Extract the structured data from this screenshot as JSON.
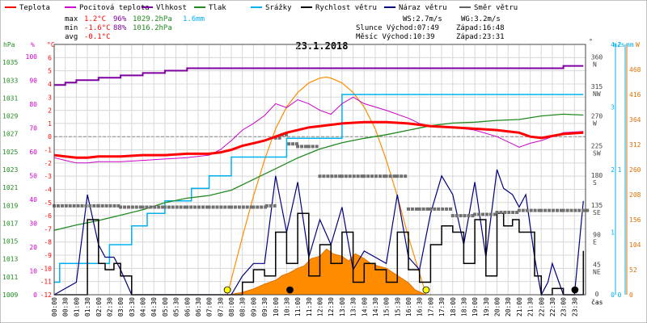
{
  "legend": {
    "items": [
      {
        "key": "teplota",
        "label": "Teplota",
        "color": "#ff0000"
      },
      {
        "key": "pocitova",
        "label": "Pocitová teplota",
        "color": "#cc00cc"
      },
      {
        "key": "vlhkost",
        "label": "Vlhkost",
        "color": "#7f00a0"
      },
      {
        "key": "tlak",
        "label": "Tlak",
        "color": "#208a20"
      },
      {
        "key": "srazky",
        "label": "Srážky",
        "color": "#00b0f0"
      },
      {
        "key": "rychlost",
        "label": "Rychlost větru",
        "color": "#000000"
      },
      {
        "key": "naraz",
        "label": "Náraz větru",
        "color": "#000080"
      },
      {
        "key": "smer",
        "label": "Směr větru",
        "color": "#606060"
      }
    ]
  },
  "stats": {
    "max_label": "max",
    "max_temp": "1.2°C",
    "max_hum": "96%",
    "max_press": "1029.2hPa",
    "sum_rain": "1.6mm",
    "min_label": "min",
    "min_temp": "-1.6°C",
    "min_hum": "88%",
    "min_press": "1016.2hPa",
    "avg_label": "avg",
    "avg_temp": "-0.1°C",
    "ws": "WS:2.7m/s",
    "wg": "WG:3.2m/s",
    "sun_rise": "Slunce Východ:07:49",
    "sun_set": "Západ:16:48",
    "moon_rise": "Měsíc  Východ:10:39",
    "moon_set": "Západ:23:31"
  },
  "chart_data": {
    "type": "line",
    "title": "23.1.2018",
    "xlabel": "čas",
    "x_ticks": [
      "00:00",
      "00:30",
      "01:00",
      "01:30",
      "02:00",
      "02:30",
      "03:00",
      "03:30",
      "04:00",
      "04:30",
      "05:00",
      "05:30",
      "06:00",
      "06:30",
      "07:00",
      "07:30",
      "08:00",
      "08:30",
      "09:00",
      "09:30",
      "10:00",
      "10:30",
      "11:00",
      "11:30",
      "12:00",
      "12:30",
      "13:00",
      "13:30",
      "14:00",
      "14:30",
      "15:00",
      "15:30",
      "16:00",
      "16:30",
      "17:00",
      "17:30",
      "18:00",
      "18:30",
      "19:00",
      "19:30",
      "20:00",
      "20:30",
      "21:00",
      "21:30",
      "22:00",
      "22:30",
      "23:00",
      "23:30"
    ],
    "axes": {
      "hPa": {
        "label": "hPa",
        "range": [
          1009,
          1037
        ],
        "ticks": [
          "1009",
          "1011",
          "1013",
          "1015",
          "1017",
          "1019",
          "1021",
          "1023",
          "1025",
          "1027",
          "1029",
          "1031",
          "1033",
          "1035"
        ]
      },
      "percent": {
        "label": "%",
        "range": [
          0,
          105
        ],
        "ticks": [
          "0",
          "10",
          "20",
          "30",
          "40",
          "50",
          "60",
          "70",
          "80",
          "90",
          "100"
        ]
      },
      "celsius": {
        "label": "°C",
        "range": [
          -12,
          7
        ],
        "ticks": [
          "-12",
          "-11",
          "-10",
          "-9",
          "-8",
          "-7",
          "-6",
          "-5",
          "-4",
          "-3",
          "-2",
          "-1",
          "0",
          "1",
          "2",
          "3",
          "4",
          "5",
          "6"
        ]
      },
      "direction": {
        "label": "°",
        "range": [
          0,
          380
        ],
        "ticks": [
          {
            "v": "360",
            "d": "N"
          },
          {
            "v": "315",
            "d": "NW"
          },
          {
            "v": "270",
            "d": "W"
          },
          {
            "v": "225",
            "d": "SW"
          },
          {
            "v": "180",
            "d": "S"
          },
          {
            "v": "135",
            "d": "SE"
          },
          {
            "v": "90",
            "d": "E"
          },
          {
            "v": "45",
            "d": "NE"
          },
          {
            "v": "0",
            "d": ""
          }
        ]
      },
      "ms": {
        "label": "m/s",
        "range": [
          0,
          4
        ],
        "ticks": [
          "0",
          "1",
          "2",
          "3",
          "4"
        ]
      },
      "mm": {
        "label": "mm",
        "range": [
          0,
          2
        ],
        "ticks": [
          "0",
          "1",
          "2"
        ]
      },
      "wm2": {
        "label": "W",
        "range": [
          0,
          520
        ],
        "ticks": [
          "0",
          "52",
          "104",
          "156",
          "208",
          "260",
          "312",
          "364",
          "416",
          "468"
        ]
      }
    },
    "series": [
      {
        "key": "teplota",
        "unit": "°C",
        "x": [
          0,
          0.5,
          1,
          1.5,
          2,
          3,
          4,
          5,
          6,
          7,
          7.5,
          8,
          8.5,
          9,
          9.5,
          10,
          10.5,
          11,
          11.5,
          12,
          13,
          14,
          15,
          16,
          16.5,
          17,
          18,
          19,
          20,
          20.5,
          21,
          21.5,
          22,
          23,
          23.9
        ],
        "values": [
          -1.4,
          -1.5,
          -1.6,
          -1.6,
          -1.5,
          -1.5,
          -1.4,
          -1.4,
          -1.3,
          -1.3,
          -1.2,
          -1.0,
          -0.7,
          -0.5,
          -0.3,
          0.0,
          0.3,
          0.5,
          0.7,
          0.8,
          1.0,
          1.1,
          1.1,
          1.0,
          0.9,
          0.8,
          0.7,
          0.6,
          0.5,
          0.4,
          0.3,
          0.0,
          -0.1,
          0.2,
          0.3
        ]
      },
      {
        "key": "pocitova",
        "unit": "°C",
        "x": [
          0,
          0.5,
          1,
          1.5,
          2,
          3,
          4,
          5,
          6,
          7,
          7.5,
          8,
          8.5,
          9,
          9.5,
          10,
          10.5,
          11,
          11.5,
          12,
          12.5,
          13,
          13.5,
          14,
          15,
          16,
          16.5,
          17,
          18,
          19,
          20,
          20.5,
          21,
          21.5,
          22,
          23,
          23.9
        ],
        "values": [
          -1.6,
          -1.8,
          -2.0,
          -2.0,
          -1.9,
          -1.9,
          -1.8,
          -1.7,
          -1.6,
          -1.4,
          -1.0,
          -0.3,
          0.5,
          1.0,
          1.6,
          2.5,
          2.2,
          2.8,
          2.5,
          2.0,
          1.7,
          2.5,
          3.0,
          2.5,
          2.0,
          1.4,
          1.0,
          0.8,
          0.7,
          0.5,
          0.0,
          -0.4,
          -0.8,
          -0.5,
          -0.3,
          0.3,
          0.4
        ]
      },
      {
        "key": "vlhkost",
        "unit": "%",
        "x": [
          0,
          0.5,
          1,
          2,
          3,
          4,
          5,
          6,
          7,
          8,
          9,
          10,
          11,
          12,
          13,
          14,
          15,
          16,
          17,
          18,
          19,
          20,
          21,
          22,
          23,
          23.9
        ],
        "values": [
          88,
          89,
          90,
          91,
          92,
          93,
          94,
          95,
          95,
          95,
          95,
          95,
          95,
          95,
          95,
          95,
          95,
          95,
          95,
          95,
          95,
          95,
          95,
          95,
          96,
          96
        ]
      },
      {
        "key": "tlak",
        "unit": "hPa",
        "x": [
          0,
          1,
          2,
          3,
          4,
          5,
          6,
          7,
          8,
          9,
          10,
          11,
          12,
          13,
          14,
          15,
          16,
          17,
          18,
          19,
          20,
          21,
          22,
          23,
          23.9
        ],
        "values": [
          1016.2,
          1016.8,
          1017.3,
          1017.9,
          1018.5,
          1019.3,
          1019.8,
          1020.1,
          1020.7,
          1021.9,
          1023.1,
          1024.3,
          1025.3,
          1026.0,
          1026.5,
          1026.9,
          1027.4,
          1027.9,
          1028.2,
          1028.3,
          1028.5,
          1028.6,
          1029.0,
          1029.2,
          1029.1
        ]
      },
      {
        "key": "srazky",
        "unit": "mm",
        "x": [
          0,
          0.25,
          1.5,
          2.5,
          3.5,
          4.2,
          5,
          6.2,
          7,
          8,
          10.5,
          13,
          23.9
        ],
        "values": [
          0.1,
          0.25,
          0.25,
          0.4,
          0.55,
          0.65,
          0.75,
          0.85,
          0.95,
          1.1,
          1.25,
          1.6,
          1.6
        ]
      },
      {
        "key": "rychlost",
        "unit": "m/s",
        "x": [
          0,
          1,
          1.5,
          2,
          2.3,
          2.7,
          3,
          3.5,
          4,
          5,
          6,
          7,
          7.5,
          8,
          8.5,
          9,
          9.5,
          10,
          10.5,
          11,
          11.5,
          12,
          12.5,
          13,
          13.5,
          14,
          14.5,
          15,
          15.5,
          16,
          16.5,
          17,
          17.5,
          18,
          18.5,
          19,
          19.5,
          20,
          20.3,
          20.7,
          21,
          21.3,
          21.7,
          22,
          22.3,
          22.5,
          23,
          23.5,
          23.9
        ],
        "values": [
          0,
          0,
          1.2,
          0.5,
          0.4,
          0.5,
          0.3,
          0,
          0,
          0,
          0,
          0,
          0,
          0,
          0.2,
          0.4,
          0.3,
          1.0,
          0.5,
          1.3,
          0.3,
          0.8,
          0.5,
          1.0,
          0.2,
          0.5,
          0.4,
          0.2,
          1.0,
          0.4,
          0.2,
          0.8,
          1.1,
          1.0,
          0.5,
          1.2,
          0.3,
          1.3,
          1.1,
          1.2,
          1.0,
          1.0,
          0.3,
          0,
          0,
          0.1,
          0,
          0,
          0.7
        ]
      },
      {
        "key": "naraz",
        "unit": "m/s",
        "x": [
          0,
          1,
          1.5,
          2,
          2.3,
          2.7,
          3,
          3.5,
          4,
          5,
          6,
          7,
          7.5,
          8,
          8.5,
          9,
          9.5,
          10,
          10.5,
          11,
          11.5,
          12,
          12.5,
          13,
          13.5,
          14,
          14.5,
          15,
          15.5,
          16,
          16.5,
          17,
          17.5,
          18,
          18.5,
          19,
          19.5,
          20,
          20.3,
          20.7,
          21,
          21.3,
          21.7,
          22,
          22.3,
          22.5,
          23,
          23.5,
          23.9
        ],
        "values": [
          0,
          0.2,
          1.6,
          0.8,
          0.6,
          0.6,
          0.4,
          0,
          0,
          0,
          0,
          0,
          0,
          0,
          0.3,
          0.5,
          0.5,
          1.9,
          1.0,
          1.8,
          0.6,
          1.2,
          0.8,
          1.4,
          0.4,
          0.7,
          0.6,
          0.5,
          1.6,
          0.6,
          0.4,
          1.3,
          1.9,
          1.6,
          0.8,
          1.8,
          0.6,
          2.0,
          1.7,
          1.6,
          1.4,
          1.6,
          0.6,
          0,
          0.2,
          0.5,
          0,
          0,
          1.5
        ]
      },
      {
        "key": "smer",
        "unit": "°",
        "x": [
          0,
          2,
          3,
          4,
          5,
          6,
          7,
          8,
          9,
          9.6,
          10,
          10.3,
          10.6,
          11,
          11.5,
          12,
          13,
          14,
          15,
          15.5,
          16,
          16.5,
          17,
          18,
          19,
          20,
          21,
          22,
          23,
          23.9
        ],
        "values": [
          135,
          135,
          133,
          133,
          133,
          133,
          133,
          133,
          133,
          135,
          238,
          243,
          229,
          225,
          225,
          180,
          180,
          180,
          180,
          180,
          130,
          130,
          130,
          120,
          122,
          125,
          128,
          128,
          128,
          128
        ]
      },
      {
        "key": "slunce",
        "unit": "W",
        "x": [
          7.82,
          8.5,
          9,
          9.5,
          10,
          10.5,
          11,
          11.5,
          12,
          12.3,
          12.5,
          13,
          13.5,
          14,
          14.5,
          15,
          15.5,
          16,
          16.8
        ],
        "values": [
          0,
          120,
          205,
          280,
          345,
          390,
          420,
          440,
          450,
          452,
          450,
          440,
          420,
          390,
          345,
          280,
          205,
          120,
          0
        ]
      },
      {
        "key": "radiace",
        "unit": "W",
        "x": [
          7.9,
          8.5,
          9,
          9.5,
          10,
          10.3,
          10.6,
          11,
          11.3,
          11.6,
          12,
          12.3,
          12.6,
          13,
          13.3,
          13.6,
          14,
          14.3,
          14.6,
          15,
          15.5,
          16,
          16.3,
          16.8
        ],
        "values": [
          0,
          5,
          12,
          22,
          30,
          40,
          45,
          55,
          60,
          75,
          80,
          95,
          85,
          80,
          70,
          85,
          75,
          65,
          60,
          55,
          40,
          25,
          10,
          0
        ]
      }
    ],
    "markers": [
      {
        "label": "sun-rise",
        "x": 7.82,
        "color": "#ffff00"
      },
      {
        "label": "sun-set",
        "x": 16.8,
        "color": "#ffff00"
      },
      {
        "label": "moon-rise",
        "x": 10.65,
        "color": "#000000"
      },
      {
        "label": "moon-set",
        "x": 23.52,
        "color": "#000000"
      }
    ]
  }
}
